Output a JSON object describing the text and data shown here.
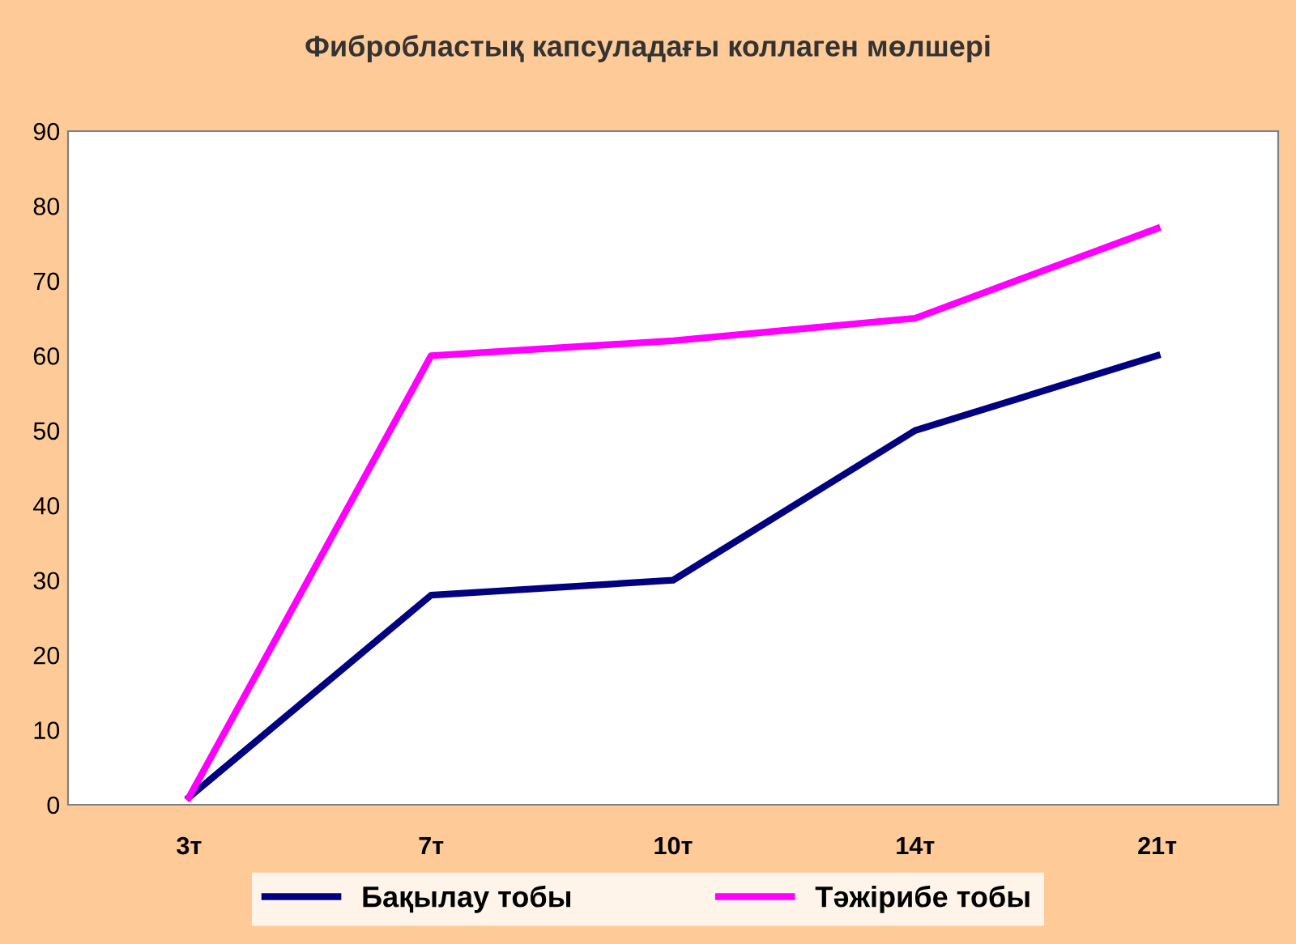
{
  "chart_data": {
    "type": "line",
    "title": "Фибробластық капсуладағы коллаген мөлшері",
    "categories": [
      "3т",
      "7т",
      "10т",
      "14т",
      "21т"
    ],
    "series": [
      {
        "name": "Бақылау тобы",
        "color": "#000080",
        "values": [
          1,
          28,
          30,
          50,
          60
        ]
      },
      {
        "name": "Тәжірибе тобы",
        "color": "#ff00ff",
        "values": [
          1,
          60,
          62,
          65,
          77
        ]
      }
    ],
    "ylim": [
      0,
      90
    ],
    "yticks": [
      0,
      10,
      20,
      30,
      40,
      50,
      60,
      70,
      80,
      90
    ],
    "grid": false,
    "legend": "bottom",
    "marker": "none",
    "line_style": "solid"
  }
}
